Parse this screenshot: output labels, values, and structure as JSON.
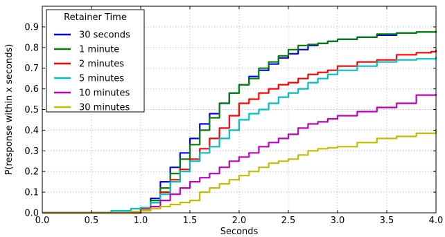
{
  "chart_data": {
    "type": "line",
    "title": "",
    "xlabel": "Seconds",
    "ylabel": "P(response within x seconds)",
    "xlim": [
      0.0,
      4.0
    ],
    "ylim": [
      0.0,
      1.0
    ],
    "x_ticks": [
      0.0,
      0.5,
      1.0,
      1.5,
      2.0,
      2.5,
      3.0,
      3.5,
      4.0
    ],
    "x_tick_labels": [
      "0.0",
      "0.5",
      "1.0",
      "1.5",
      "2.0",
      "2.5",
      "3.0",
      "3.5",
      "4.0"
    ],
    "y_ticks": [
      0.0,
      0.1,
      0.2,
      0.3,
      0.4,
      0.5,
      0.6,
      0.7,
      0.8,
      0.9
    ],
    "y_tick_labels": [
      "0.0",
      "0.1",
      "0.2",
      "0.3",
      "0.4",
      "0.5",
      "0.6",
      "0.7",
      "0.8",
      "0.9"
    ],
    "grid": true,
    "legend": {
      "title": "Retainer Time",
      "placement": "top-left"
    },
    "series": [
      {
        "name": "30 seconds",
        "color": "#0000ff",
        "points": [
          [
            0.0,
            0.0
          ],
          [
            0.7,
            0.0
          ],
          [
            0.9,
            0.005
          ],
          [
            1.0,
            0.02
          ],
          [
            1.1,
            0.07
          ],
          [
            1.2,
            0.15
          ],
          [
            1.3,
            0.22
          ],
          [
            1.4,
            0.29
          ],
          [
            1.5,
            0.36
          ],
          [
            1.6,
            0.43
          ],
          [
            1.7,
            0.48
          ],
          [
            1.8,
            0.53
          ],
          [
            1.9,
            0.58
          ],
          [
            2.0,
            0.62
          ],
          [
            2.1,
            0.66
          ],
          [
            2.2,
            0.69
          ],
          [
            2.3,
            0.72
          ],
          [
            2.4,
            0.75
          ],
          [
            2.5,
            0.77
          ],
          [
            2.6,
            0.79
          ],
          [
            2.7,
            0.81
          ],
          [
            2.8,
            0.82
          ],
          [
            2.9,
            0.83
          ],
          [
            3.0,
            0.84
          ],
          [
            3.2,
            0.85
          ],
          [
            3.4,
            0.86
          ],
          [
            3.6,
            0.87
          ],
          [
            3.8,
            0.875
          ],
          [
            4.0,
            0.88
          ]
        ]
      },
      {
        "name": "1 minute",
        "color": "#008000",
        "points": [
          [
            0.0,
            0.0
          ],
          [
            0.8,
            0.0
          ],
          [
            1.0,
            0.02
          ],
          [
            1.1,
            0.06
          ],
          [
            1.2,
            0.12
          ],
          [
            1.3,
            0.19
          ],
          [
            1.4,
            0.26
          ],
          [
            1.5,
            0.33
          ],
          [
            1.6,
            0.4
          ],
          [
            1.7,
            0.46
          ],
          [
            1.8,
            0.53
          ],
          [
            1.9,
            0.58
          ],
          [
            2.0,
            0.62
          ],
          [
            2.1,
            0.65
          ],
          [
            2.2,
            0.7
          ],
          [
            2.3,
            0.73
          ],
          [
            2.4,
            0.76
          ],
          [
            2.5,
            0.79
          ],
          [
            2.6,
            0.81
          ],
          [
            2.7,
            0.815
          ],
          [
            2.8,
            0.82
          ],
          [
            2.9,
            0.83
          ],
          [
            3.0,
            0.84
          ],
          [
            3.2,
            0.85
          ],
          [
            3.4,
            0.865
          ],
          [
            3.6,
            0.87
          ],
          [
            3.8,
            0.875
          ],
          [
            4.0,
            0.88
          ]
        ]
      },
      {
        "name": "2 minutes",
        "color": "#ff0000",
        "points": [
          [
            0.0,
            0.0
          ],
          [
            0.8,
            0.0
          ],
          [
            1.0,
            0.02
          ],
          [
            1.1,
            0.05
          ],
          [
            1.2,
            0.1
          ],
          [
            1.3,
            0.16
          ],
          [
            1.4,
            0.21
          ],
          [
            1.5,
            0.26
          ],
          [
            1.6,
            0.31
          ],
          [
            1.7,
            0.36
          ],
          [
            1.8,
            0.41
          ],
          [
            1.9,
            0.47
          ],
          [
            2.0,
            0.53
          ],
          [
            2.1,
            0.55
          ],
          [
            2.2,
            0.58
          ],
          [
            2.3,
            0.6
          ],
          [
            2.4,
            0.62
          ],
          [
            2.5,
            0.63
          ],
          [
            2.6,
            0.65
          ],
          [
            2.7,
            0.67
          ],
          [
            2.8,
            0.68
          ],
          [
            2.9,
            0.69
          ],
          [
            3.0,
            0.71
          ],
          [
            3.2,
            0.73
          ],
          [
            3.4,
            0.74
          ],
          [
            3.6,
            0.765
          ],
          [
            3.8,
            0.775
          ],
          [
            3.95,
            0.78
          ],
          [
            4.0,
            0.79
          ]
        ]
      },
      {
        "name": "5 minutes",
        "color": "#00bfbf",
        "points": [
          [
            0.0,
            0.0
          ],
          [
            0.5,
            0.0
          ],
          [
            0.7,
            0.01
          ],
          [
            0.9,
            0.02
          ],
          [
            1.0,
            0.025
          ],
          [
            1.1,
            0.05
          ],
          [
            1.2,
            0.09
          ],
          [
            1.3,
            0.15
          ],
          [
            1.4,
            0.2
          ],
          [
            1.5,
            0.25
          ],
          [
            1.6,
            0.29
          ],
          [
            1.7,
            0.32
          ],
          [
            1.8,
            0.36
          ],
          [
            1.9,
            0.4
          ],
          [
            2.0,
            0.45
          ],
          [
            2.1,
            0.48
          ],
          [
            2.2,
            0.5
          ],
          [
            2.3,
            0.53
          ],
          [
            2.4,
            0.56
          ],
          [
            2.5,
            0.58
          ],
          [
            2.6,
            0.6
          ],
          [
            2.7,
            0.63
          ],
          [
            2.8,
            0.65
          ],
          [
            2.9,
            0.67
          ],
          [
            3.0,
            0.69
          ],
          [
            3.2,
            0.71
          ],
          [
            3.4,
            0.73
          ],
          [
            3.6,
            0.74
          ],
          [
            3.8,
            0.745
          ],
          [
            4.0,
            0.755
          ]
        ]
      },
      {
        "name": "10 minutes",
        "color": "#bf00bf",
        "points": [
          [
            0.0,
            0.0
          ],
          [
            0.6,
            0.0
          ],
          [
            0.9,
            0.005
          ],
          [
            1.0,
            0.01
          ],
          [
            1.1,
            0.03
          ],
          [
            1.2,
            0.06
          ],
          [
            1.3,
            0.09
          ],
          [
            1.4,
            0.12
          ],
          [
            1.5,
            0.15
          ],
          [
            1.6,
            0.17
          ],
          [
            1.7,
            0.19
          ],
          [
            1.8,
            0.22
          ],
          [
            1.9,
            0.25
          ],
          [
            2.0,
            0.27
          ],
          [
            2.1,
            0.29
          ],
          [
            2.2,
            0.32
          ],
          [
            2.3,
            0.34
          ],
          [
            2.4,
            0.36
          ],
          [
            2.5,
            0.38
          ],
          [
            2.6,
            0.41
          ],
          [
            2.7,
            0.43
          ],
          [
            2.8,
            0.44
          ],
          [
            2.9,
            0.455
          ],
          [
            3.0,
            0.47
          ],
          [
            3.2,
            0.49
          ],
          [
            3.4,
            0.51
          ],
          [
            3.6,
            0.53
          ],
          [
            3.8,
            0.57
          ],
          [
            4.0,
            0.575
          ]
        ]
      },
      {
        "name": "30 minutes",
        "color": "#bfbf00",
        "points": [
          [
            0.0,
            0.0
          ],
          [
            0.5,
            0.0
          ],
          [
            0.9,
            0.005
          ],
          [
            1.0,
            0.01
          ],
          [
            1.1,
            0.02
          ],
          [
            1.2,
            0.03
          ],
          [
            1.3,
            0.04
          ],
          [
            1.4,
            0.05
          ],
          [
            1.5,
            0.06
          ],
          [
            1.6,
            0.1
          ],
          [
            1.7,
            0.12
          ],
          [
            1.8,
            0.14
          ],
          [
            1.9,
            0.16
          ],
          [
            2.0,
            0.18
          ],
          [
            2.1,
            0.2
          ],
          [
            2.2,
            0.22
          ],
          [
            2.3,
            0.24
          ],
          [
            2.4,
            0.25
          ],
          [
            2.5,
            0.26
          ],
          [
            2.6,
            0.28
          ],
          [
            2.7,
            0.3
          ],
          [
            2.8,
            0.31
          ],
          [
            2.9,
            0.315
          ],
          [
            3.0,
            0.32
          ],
          [
            3.2,
            0.34
          ],
          [
            3.4,
            0.36
          ],
          [
            3.6,
            0.37
          ],
          [
            3.8,
            0.385
          ],
          [
            4.0,
            0.4
          ]
        ]
      }
    ]
  }
}
